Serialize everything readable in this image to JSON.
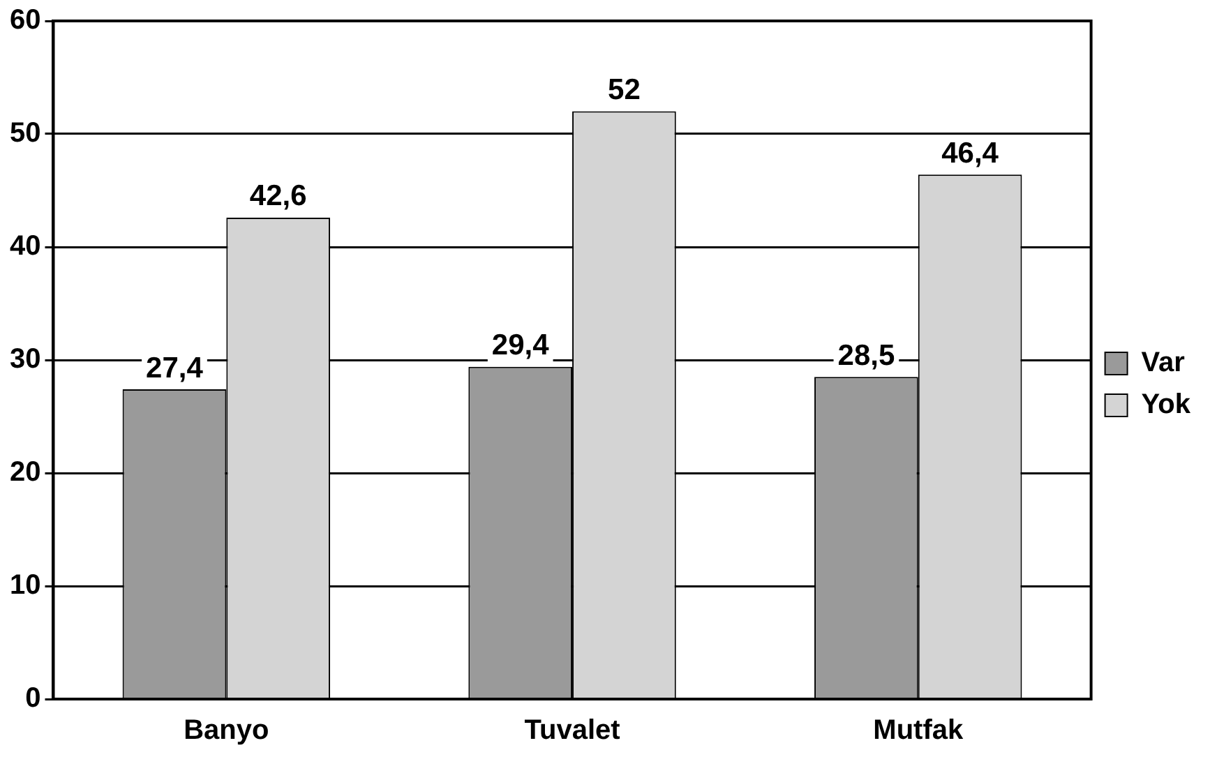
{
  "chart_data": {
    "type": "bar",
    "categories": [
      "Banyo",
      "Tuvalet",
      "Mutfak"
    ],
    "series": [
      {
        "name": "Var",
        "color": "#9a9a9a",
        "values": [
          27.4,
          29.4,
          28.5
        ],
        "value_labels": [
          "27,4",
          "29,4",
          "28,5"
        ]
      },
      {
        "name": "Yok",
        "color": "#d4d4d4",
        "values": [
          42.6,
          52,
          46.4
        ],
        "value_labels": [
          "42,6",
          "52",
          "46,4"
        ]
      }
    ],
    "ylim": [
      0,
      60
    ],
    "yticks": [
      0,
      10,
      20,
      30,
      40,
      50,
      60
    ],
    "grid": "y",
    "legend": "right"
  }
}
